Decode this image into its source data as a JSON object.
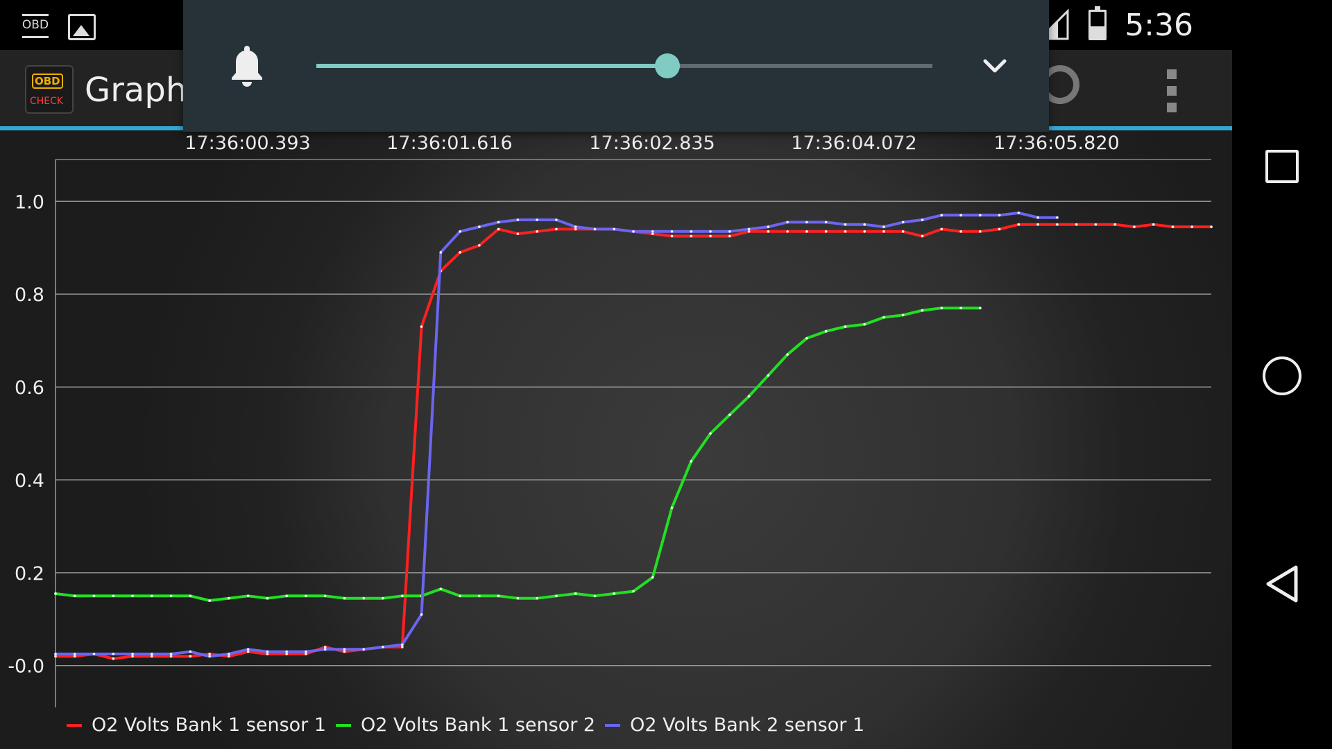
{
  "status_bar": {
    "time": "5:36",
    "notification_obd_label": "OBD",
    "icons": [
      "obd-notification-icon",
      "gallery-icon",
      "signal-icon",
      "battery-icon"
    ]
  },
  "action_bar": {
    "title": "Graph",
    "logo_obd_text": "OBD",
    "logo_check_text": "CHECK",
    "accent_color": "#33a8d6"
  },
  "volume_panel": {
    "level": 0.57,
    "accent_color": "#80cbc4",
    "icons": [
      "bell-icon",
      "chevron-down-icon"
    ]
  },
  "chart_data": {
    "type": "line",
    "x_labels": [
      "17:36:00.393",
      "17:36:01.616",
      "17:36:02.835",
      "17:36:04.072",
      "17:36:05.820"
    ],
    "y_ticks": [
      "1.0",
      "0.8",
      "0.6",
      "0.4",
      "0.2",
      "-0.0"
    ],
    "ylim": [
      -0.09,
      1.09
    ],
    "grid": true,
    "legend_position": "bottom-left",
    "n_samples": 61,
    "series": [
      {
        "name": "O2 Volts Bank 1 sensor 1",
        "color": "#ff2020",
        "values": [
          0.02,
          0.02,
          0.025,
          0.015,
          0.02,
          0.02,
          0.02,
          0.02,
          0.025,
          0.02,
          0.03,
          0.025,
          0.025,
          0.025,
          0.04,
          0.03,
          0.035,
          0.04,
          0.04,
          0.73,
          0.85,
          0.89,
          0.905,
          0.94,
          0.93,
          0.935,
          0.94,
          0.94,
          0.94,
          0.94,
          0.935,
          0.93,
          0.925,
          0.925,
          0.925,
          0.925,
          0.935,
          0.935,
          0.935,
          0.935,
          0.935,
          0.935,
          0.935,
          0.935,
          0.935,
          0.925,
          0.94,
          0.935,
          0.935,
          0.94,
          0.95,
          0.95,
          0.95,
          0.95,
          0.95,
          0.95,
          0.945,
          0.95,
          0.945,
          0.945,
          0.945
        ]
      },
      {
        "name": "O2 Volts Bank 1 sensor 2",
        "color": "#22e022",
        "values": [
          0.155,
          0.15,
          0.15,
          0.15,
          0.15,
          0.15,
          0.15,
          0.15,
          0.14,
          0.145,
          0.15,
          0.145,
          0.15,
          0.15,
          0.15,
          0.145,
          0.145,
          0.145,
          0.15,
          0.15,
          0.165,
          0.15,
          0.15,
          0.15,
          0.145,
          0.145,
          0.15,
          0.155,
          0.15,
          0.155,
          0.16,
          0.19,
          0.34,
          0.44,
          0.5,
          0.54,
          0.58,
          0.625,
          0.67,
          0.705,
          0.72,
          0.73,
          0.735,
          0.75,
          0.755,
          0.765,
          0.77,
          0.77,
          0.77
        ]
      },
      {
        "name": "O2 Volts Bank 2 sensor 1",
        "color": "#6a66f0",
        "values": [
          0.025,
          0.025,
          0.025,
          0.025,
          0.025,
          0.025,
          0.025,
          0.03,
          0.02,
          0.025,
          0.035,
          0.03,
          0.03,
          0.03,
          0.035,
          0.035,
          0.035,
          0.04,
          0.045,
          0.11,
          0.89,
          0.935,
          0.945,
          0.955,
          0.96,
          0.96,
          0.96,
          0.945,
          0.94,
          0.94,
          0.935,
          0.935,
          0.935,
          0.935,
          0.935,
          0.935,
          0.94,
          0.945,
          0.955,
          0.955,
          0.955,
          0.95,
          0.95,
          0.945,
          0.955,
          0.96,
          0.97,
          0.97,
          0.97,
          0.97,
          0.975,
          0.965,
          0.965
        ]
      }
    ]
  },
  "legend": {
    "items": [
      {
        "label": "O2 Volts Bank 1 sensor 1",
        "color": "#ff2020"
      },
      {
        "label": "O2 Volts Bank 1 sensor 2",
        "color": "#22e022"
      },
      {
        "label": "O2 Volts Bank 2 sensor 1",
        "color": "#6a66f0"
      }
    ]
  },
  "nav_bar": {
    "icons": [
      "recent-apps-icon",
      "home-icon",
      "back-icon"
    ]
  }
}
